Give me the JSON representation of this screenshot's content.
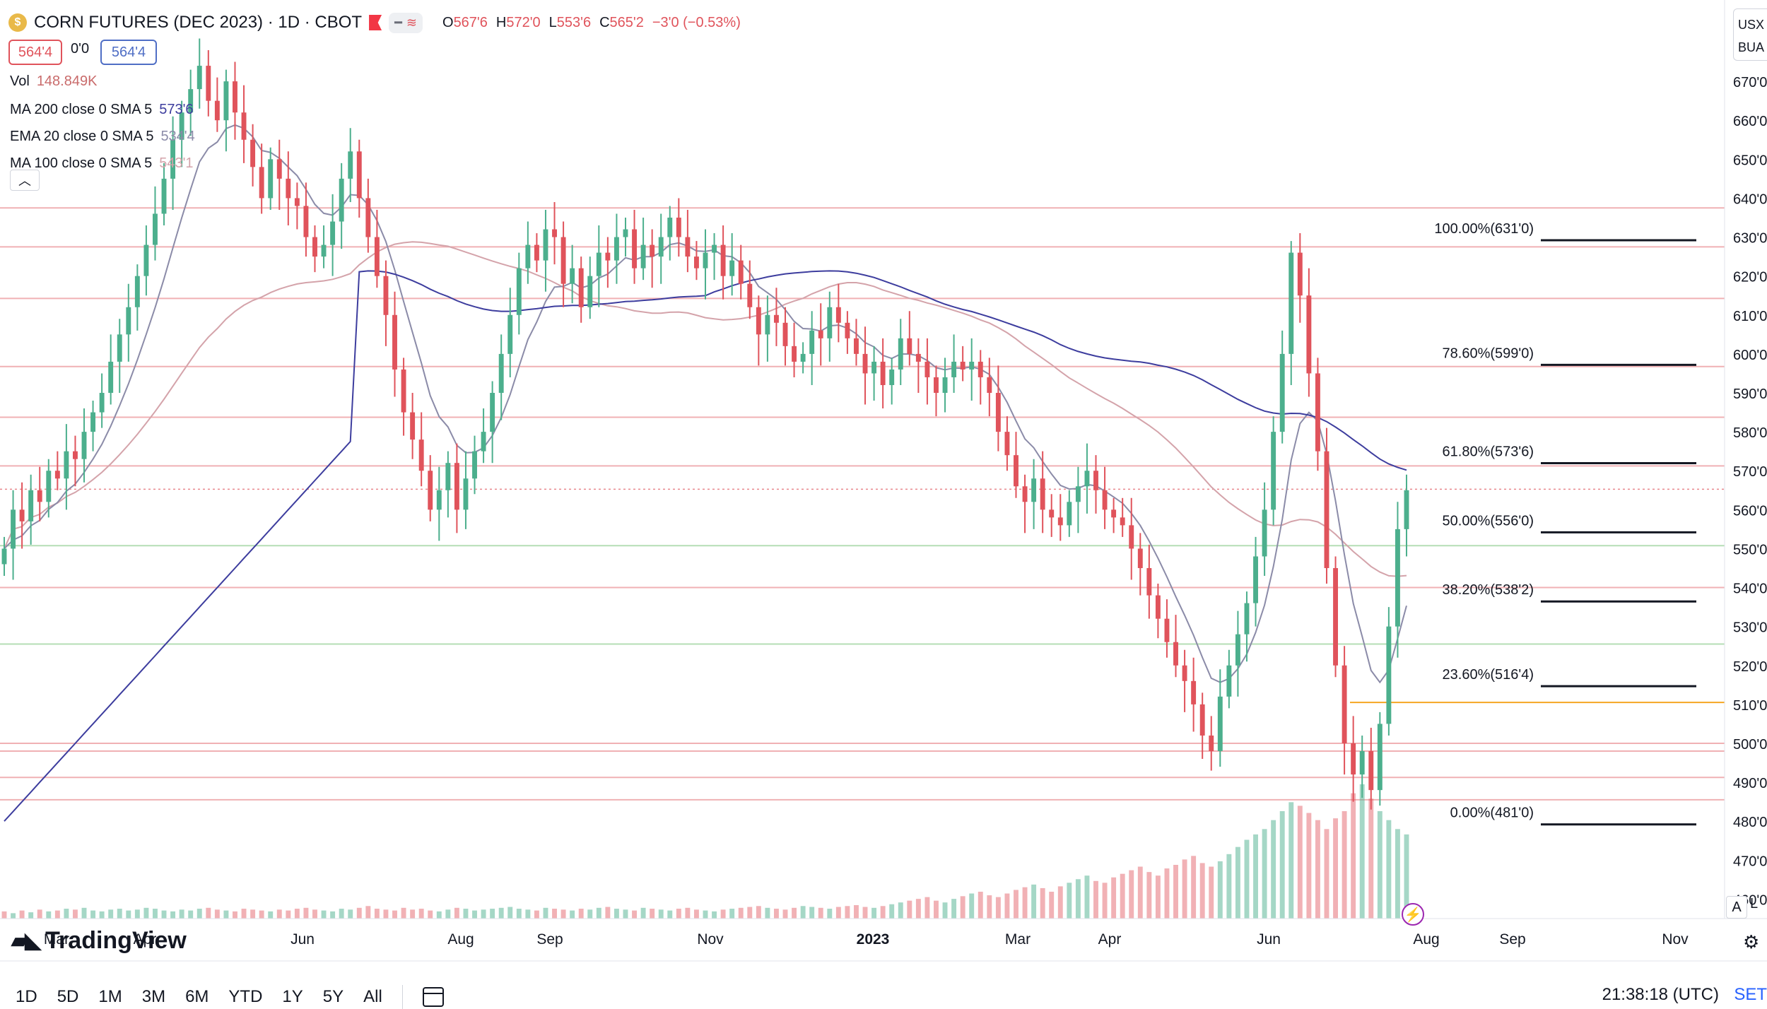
{
  "header": {
    "symbol_icon": "corn-coin-icon",
    "title": "CORN FUTURES (DEC 2023) · 1D · CBOT",
    "ohlc": {
      "o_label": "O",
      "o": "567'6",
      "h_label": "H",
      "h": "572'0",
      "l_label": "L",
      "l": "553'6",
      "c_label": "C",
      "c": "565'2",
      "change": "−3'0 (−0.53%)"
    },
    "bid": "564'4",
    "spread": "0'0",
    "ask": "564'4",
    "currency_top": "USX",
    "currency_bottom": "BUA"
  },
  "legend": [
    {
      "label": "Vol",
      "value": "148.849K",
      "color": "#c96b6b"
    },
    {
      "label": "MA 200 close 0 SMA 5",
      "value": "573'6",
      "color": "#3d3d9e"
    },
    {
      "label": "EMA 20 close 0 SMA 5",
      "value": "534'4",
      "color": "#8b8ba8"
    },
    {
      "label": "MA 100 close 0 SMA 5",
      "value": "543'1",
      "color": "#d4a3aa"
    }
  ],
  "collapse_icon": "chevron-up-icon",
  "logo": "TradingView",
  "toolbar": {
    "ranges": [
      "1D",
      "5D",
      "1M",
      "3M",
      "6M",
      "YTD",
      "1Y",
      "5Y",
      "All"
    ],
    "clock": "21:38:18 (UTC)",
    "settings": "SET",
    "auto_btn": "A",
    "log_btn": "L"
  },
  "chart_data": {
    "type": "candlestick",
    "price_axis": {
      "min": 455,
      "max": 680,
      "tick_labels": [
        "670'0",
        "660'0",
        "650'0",
        "640'0",
        "630'0",
        "620'0",
        "610'0",
        "600'0",
        "590'0",
        "580'0",
        "570'0",
        "560'0",
        "550'0",
        "540'0",
        "530'0",
        "520'0",
        "510'0",
        "500'0",
        "490'0",
        "480'0",
        "470'0",
        "460'0"
      ],
      "tick_values": [
        670,
        660,
        650,
        640,
        630,
        620,
        610,
        600,
        590,
        580,
        570,
        560,
        550,
        540,
        530,
        520,
        510,
        500,
        490,
        480,
        470,
        460
      ]
    },
    "time_axis": {
      "labels": [
        "Mar",
        "Apr",
        "Jun",
        "Aug",
        "Sep",
        "Nov",
        "2023",
        "Mar",
        "Apr",
        "Jun",
        "Aug",
        "Sep",
        "Nov"
      ],
      "bold": "2023"
    },
    "horizontal_levels": [
      {
        "label": "637'4",
        "value": 637.5,
        "color": "#e0535b"
      },
      {
        "label": "627'4",
        "value": 627.5,
        "color": "#e0535b"
      },
      {
        "label": "614'2",
        "value": 614.25,
        "color": "#e0535b"
      },
      {
        "label": "596'6",
        "value": 596.75,
        "color": "#e0535b"
      },
      {
        "label": "583'6",
        "value": 583.75,
        "color": "#e0535b"
      },
      {
        "label": "571'2",
        "value": 571.25,
        "color": "#e0535b"
      },
      {
        "label": "565'2",
        "value": 565.25,
        "color": "#e0535b",
        "dotted": true
      },
      {
        "label": "550'6",
        "value": 550.75,
        "color": "#5cb85c"
      },
      {
        "label": "540'0",
        "value": 540,
        "color": "#e0535b"
      },
      {
        "label": "525'4",
        "value": 525.5,
        "color": "#5cb85c"
      },
      {
        "label": "500'0",
        "value": 500,
        "color": "#e0535b"
      },
      {
        "label": "498'0",
        "value": 498,
        "color": "#e0535b"
      },
      {
        "label": "491'2",
        "value": 491.25,
        "color": "#e0535b"
      },
      {
        "label": "485'4",
        "value": 485.5,
        "color": "#e0535b"
      }
    ],
    "fib_levels": [
      {
        "label": "100.00%(631'0)",
        "value": 631
      },
      {
        "label": "78.60%(599'0)",
        "value": 599
      },
      {
        "label": "61.80%(573'6)",
        "value": 573.75
      },
      {
        "label": "50.00%(556'0)",
        "value": 556
      },
      {
        "label": "38.20%(538'2)",
        "value": 538.25
      },
      {
        "label": "23.60%(516'4)",
        "value": 516.5
      },
      {
        "label": "0.00%(481'0)",
        "value": 481
      }
    ],
    "orange_level": 510.5,
    "closes": [
      550,
      560,
      557,
      565,
      562,
      570,
      568,
      575,
      573,
      580,
      585,
      590,
      598,
      605,
      612,
      620,
      628,
      636,
      645,
      655,
      662,
      668,
      674,
      665,
      660,
      670,
      662,
      655,
      648,
      640,
      650,
      645,
      640,
      638,
      630,
      625,
      628,
      634,
      645,
      652,
      640,
      630,
      620,
      610,
      596,
      585,
      578,
      570,
      560,
      565,
      572,
      560,
      568,
      575,
      580,
      590,
      600,
      610,
      622,
      628,
      624,
      632,
      630,
      618,
      622,
      612,
      620,
      626,
      624,
      630,
      632,
      622,
      628,
      625,
      630,
      635,
      630,
      625,
      622,
      626,
      628,
      620,
      624,
      618,
      612,
      605,
      610,
      608,
      602,
      598,
      600,
      606,
      604,
      612,
      608,
      604,
      600,
      595,
      598,
      592,
      596,
      604,
      600,
      598,
      594,
      590,
      594,
      598,
      596,
      598,
      594,
      590,
      580,
      574,
      566,
      562,
      568,
      560,
      558,
      556,
      562,
      566,
      570,
      565,
      560,
      558,
      556,
      550,
      545,
      538,
      532,
      526,
      520,
      516,
      510,
      502,
      498,
      512,
      520,
      528,
      536,
      548,
      560,
      580,
      600,
      626,
      615,
      595,
      575,
      545,
      520,
      500,
      492,
      498,
      488,
      505,
      530,
      555,
      565
    ],
    "volumes": [
      8,
      6,
      9,
      7,
      10,
      8,
      9,
      11,
      10,
      12,
      9,
      8,
      10,
      11,
      9,
      10,
      12,
      11,
      9,
      8,
      10,
      9,
      11,
      12,
      10,
      9,
      8,
      11,
      10,
      9,
      8,
      10,
      9,
      11,
      12,
      10,
      9,
      8,
      11,
      10,
      12,
      14,
      11,
      10,
      9,
      12,
      10,
      11,
      9,
      8,
      10,
      12,
      11,
      9,
      10,
      11,
      12,
      13,
      11,
      10,
      9,
      12,
      11,
      10,
      9,
      11,
      10,
      12,
      13,
      11,
      10,
      9,
      12,
      11,
      10,
      9,
      11,
      12,
      10,
      9,
      8,
      10,
      11,
      12,
      13,
      14,
      12,
      11,
      10,
      12,
      14,
      13,
      12,
      11,
      13,
      14,
      15,
      13,
      12,
      14,
      16,
      18,
      20,
      22,
      24,
      20,
      18,
      22,
      25,
      28,
      30,
      26,
      24,
      28,
      32,
      35,
      38,
      34,
      30,
      36,
      40,
      44,
      48,
      42,
      40,
      46,
      50,
      54,
      58,
      52,
      48,
      56,
      60,
      66,
      70,
      62,
      58,
      64,
      72,
      80,
      88,
      94,
      100,
      110,
      120,
      130,
      126,
      118,
      110,
      100,
      112,
      120,
      140,
      150,
      134,
      120,
      110,
      100,
      94
    ]
  }
}
